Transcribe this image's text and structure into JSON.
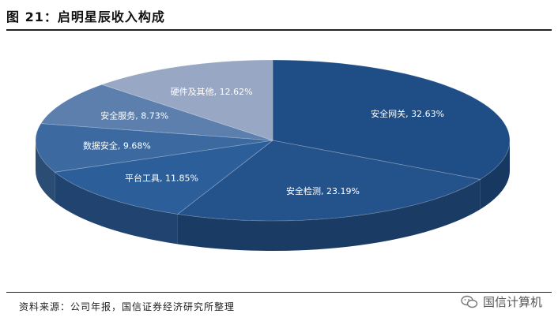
{
  "header": {
    "title": "图 21：启明星辰收入构成"
  },
  "footer": {
    "source": "资料来源：公司年报，国信证券经济研究所整理"
  },
  "watermark": {
    "text": "国信计算机",
    "icon": "wechat-icon"
  },
  "chart_data": {
    "type": "pie",
    "title": "",
    "slices": [
      {
        "label": "安全网关",
        "value": 32.63,
        "text": "安全网关, 32.63%",
        "color": "#1f4e87"
      },
      {
        "label": "安全检测",
        "value": 23.19,
        "text": "安全检测, 23.19%",
        "color": "#24528a"
      },
      {
        "label": "平台工具",
        "value": 11.85,
        "text": "平台工具, 11.85%",
        "color": "#2c5f9a"
      },
      {
        "label": "数据安全",
        "value": 9.68,
        "text": "数据安全, 9.68%",
        "color": "#3c6aa0"
      },
      {
        "label": "安全服务",
        "value": 8.73,
        "text": "安全服务, 8.73%",
        "color": "#5d7fae"
      },
      {
        "label": "硬件及其他",
        "value": 12.62,
        "text": "硬件及其他, 12.62%",
        "color": "#98a7c3"
      }
    ]
  }
}
